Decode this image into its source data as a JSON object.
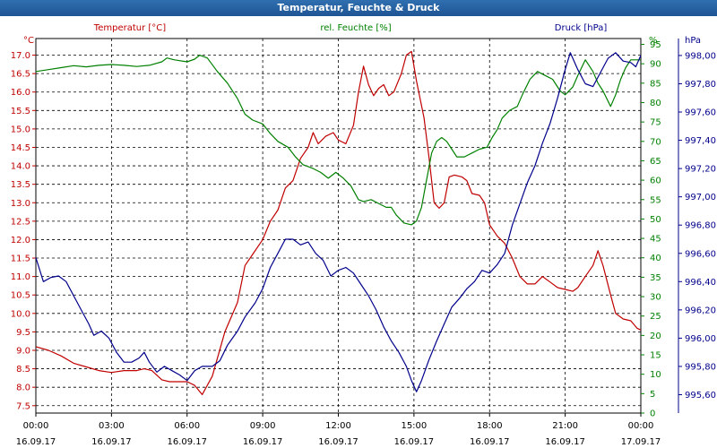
{
  "window": {
    "title": "Temperatur, Feuchte & Druck"
  },
  "chart_data": {
    "type": "line",
    "title": "Temperatur, Feuchte & Druck",
    "x_ticks": [
      {
        "time": "00:00",
        "date": "16.09.17"
      },
      {
        "time": "03:00",
        "date": "16.09.17"
      },
      {
        "time": "06:00",
        "date": "16.09.17"
      },
      {
        "time": "09:00",
        "date": "16.09.17"
      },
      {
        "time": "12:00",
        "date": "16.09.17"
      },
      {
        "time": "15:00",
        "date": "16.09.17"
      },
      {
        "time": "18:00",
        "date": "16.09.17"
      },
      {
        "time": "21:00",
        "date": "16.09.17"
      },
      {
        "time": "00:00",
        "date": "17.09.17"
      }
    ],
    "x_range_hours": [
      0,
      24
    ],
    "grid": true,
    "axes": {
      "temperature": {
        "side": "left",
        "unit": "°C",
        "color": "#c00000",
        "range": [
          7.3,
          17.45
        ],
        "ticks": [
          "7.5",
          "8.0",
          "8.5",
          "9.0",
          "9.5",
          "10.0",
          "10.5",
          "11.0",
          "11.5",
          "12.0",
          "12.5",
          "13.0",
          "13.5",
          "14.0",
          "14.5",
          "15.0",
          "15.5",
          "16.0",
          "16.5",
          "17.0"
        ]
      },
      "humidity": {
        "side": "right-inner",
        "unit": "%",
        "color": "#008000",
        "range": [
          0,
          96.5
        ],
        "ticks": [
          "0",
          "5",
          "10",
          "15",
          "20",
          "25",
          "30",
          "35",
          "40",
          "45",
          "50",
          "55",
          "60",
          "65",
          "70",
          "75",
          "80",
          "85",
          "90",
          "95"
        ]
      },
      "pressure": {
        "side": "right-outer",
        "unit": "hPa",
        "color": "#00008b",
        "range": [
          995.47,
          998.12
        ],
        "ticks": [
          "995,60",
          "995,80",
          "996,00",
          "996,20",
          "996,40",
          "996,60",
          "996,80",
          "997,00",
          "997,20",
          "997,40",
          "997,60",
          "997,80",
          "998,00"
        ]
      }
    },
    "series": [
      {
        "name": "Temperatur [°C]",
        "axis": "temperature",
        "color": "#c00000",
        "points": [
          [
            0,
            9.1
          ],
          [
            0.5,
            9.0
          ],
          [
            1,
            8.85
          ],
          [
            1.5,
            8.65
          ],
          [
            2,
            8.55
          ],
          [
            2.5,
            8.45
          ],
          [
            3,
            8.4
          ],
          [
            3.5,
            8.45
          ],
          [
            4,
            8.45
          ],
          [
            4.3,
            8.5
          ],
          [
            4.6,
            8.45
          ],
          [
            5,
            8.2
          ],
          [
            5.3,
            8.15
          ],
          [
            5.6,
            8.15
          ],
          [
            6,
            8.15
          ],
          [
            6.3,
            8.05
          ],
          [
            6.6,
            7.8
          ],
          [
            7,
            8.3
          ],
          [
            7.5,
            9.5
          ],
          [
            8,
            10.3
          ],
          [
            8.3,
            11.3
          ],
          [
            8.6,
            11.6
          ],
          [
            9,
            12.0
          ],
          [
            9.3,
            12.5
          ],
          [
            9.6,
            12.8
          ],
          [
            9.9,
            13.4
          ],
          [
            10.2,
            13.6
          ],
          [
            10.5,
            14.2
          ],
          [
            10.8,
            14.5
          ],
          [
            11,
            14.9
          ],
          [
            11.2,
            14.6
          ],
          [
            11.5,
            14.8
          ],
          [
            11.8,
            14.9
          ],
          [
            12,
            14.7
          ],
          [
            12.3,
            14.6
          ],
          [
            12.6,
            15.1
          ],
          [
            12.8,
            16.0
          ],
          [
            13,
            16.7
          ],
          [
            13.2,
            16.2
          ],
          [
            13.4,
            15.9
          ],
          [
            13.6,
            16.1
          ],
          [
            13.8,
            16.2
          ],
          [
            14,
            15.9
          ],
          [
            14.2,
            16.0
          ],
          [
            14.5,
            16.5
          ],
          [
            14.7,
            17.0
          ],
          [
            14.9,
            17.1
          ],
          [
            15.1,
            16.3
          ],
          [
            15.4,
            15.3
          ],
          [
            15.6,
            14.2
          ],
          [
            15.8,
            13.0
          ],
          [
            16,
            12.85
          ],
          [
            16.2,
            13.0
          ],
          [
            16.4,
            13.7
          ],
          [
            16.6,
            13.75
          ],
          [
            16.9,
            13.7
          ],
          [
            17.1,
            13.6
          ],
          [
            17.3,
            13.25
          ],
          [
            17.6,
            13.2
          ],
          [
            17.8,
            13.0
          ],
          [
            18,
            12.4
          ],
          [
            18.3,
            12.1
          ],
          [
            18.6,
            11.9
          ],
          [
            18.9,
            11.5
          ],
          [
            19.2,
            11.0
          ],
          [
            19.5,
            10.8
          ],
          [
            19.8,
            10.8
          ],
          [
            20.1,
            11.0
          ],
          [
            20.4,
            10.85
          ],
          [
            20.7,
            10.7
          ],
          [
            21,
            10.65
          ],
          [
            21.3,
            10.6
          ],
          [
            21.5,
            10.7
          ],
          [
            21.8,
            11.0
          ],
          [
            22.1,
            11.3
          ],
          [
            22.3,
            11.7
          ],
          [
            22.5,
            11.3
          ],
          [
            22.8,
            10.5
          ],
          [
            23,
            10.0
          ],
          [
            23.3,
            9.85
          ],
          [
            23.6,
            9.8
          ],
          [
            23.85,
            9.6
          ],
          [
            24,
            9.55
          ]
        ]
      },
      {
        "name": "rel. Feuchte [%]",
        "axis": "humidity",
        "color": "#008000",
        "points": [
          [
            0,
            88
          ],
          [
            0.5,
            88.5
          ],
          [
            1,
            89
          ],
          [
            1.5,
            89.5
          ],
          [
            2,
            89.2
          ],
          [
            2.5,
            89.6
          ],
          [
            3,
            89.8
          ],
          [
            3.5,
            89.6
          ],
          [
            4,
            89.3
          ],
          [
            4.5,
            89.6
          ],
          [
            5,
            90.5
          ],
          [
            5.2,
            91.5
          ],
          [
            5.5,
            91
          ],
          [
            6,
            90.5
          ],
          [
            6.3,
            91.2
          ],
          [
            6.5,
            92.2
          ],
          [
            6.8,
            91.5
          ],
          [
            7.2,
            88
          ],
          [
            7.6,
            85
          ],
          [
            8,
            81
          ],
          [
            8.3,
            77
          ],
          [
            8.6,
            75.5
          ],
          [
            9,
            74.5
          ],
          [
            9.3,
            72
          ],
          [
            9.6,
            70
          ],
          [
            10,
            68.5
          ],
          [
            10.3,
            66
          ],
          [
            10.6,
            64
          ],
          [
            11,
            63
          ],
          [
            11.3,
            62
          ],
          [
            11.6,
            60.5
          ],
          [
            11.9,
            62
          ],
          [
            12.2,
            60.5
          ],
          [
            12.5,
            58.5
          ],
          [
            12.8,
            55
          ],
          [
            13,
            54.5
          ],
          [
            13.3,
            55
          ],
          [
            13.6,
            54
          ],
          [
            13.9,
            53
          ],
          [
            14.1,
            53
          ],
          [
            14.3,
            51
          ],
          [
            14.6,
            49
          ],
          [
            14.9,
            48.5
          ],
          [
            15.1,
            49.5
          ],
          [
            15.3,
            53
          ],
          [
            15.5,
            60
          ],
          [
            15.7,
            67
          ],
          [
            15.9,
            70
          ],
          [
            16.1,
            71
          ],
          [
            16.3,
            70
          ],
          [
            16.5,
            68
          ],
          [
            16.7,
            66
          ],
          [
            17,
            66
          ],
          [
            17.3,
            67
          ],
          [
            17.6,
            68
          ],
          [
            17.9,
            68.5
          ],
          [
            18.1,
            71
          ],
          [
            18.3,
            73
          ],
          [
            18.5,
            76
          ],
          [
            18.8,
            78
          ],
          [
            19.1,
            79
          ],
          [
            19.3,
            82
          ],
          [
            19.6,
            86
          ],
          [
            19.9,
            88
          ],
          [
            20.2,
            87
          ],
          [
            20.5,
            86
          ],
          [
            20.8,
            83
          ],
          [
            21,
            82
          ],
          [
            21.3,
            84
          ],
          [
            21.5,
            87
          ],
          [
            21.8,
            91
          ],
          [
            22.1,
            88
          ],
          [
            22.3,
            85
          ],
          [
            22.5,
            83
          ],
          [
            22.8,
            79
          ],
          [
            23,
            82
          ],
          [
            23.2,
            86
          ],
          [
            23.4,
            89
          ],
          [
            23.6,
            91
          ],
          [
            24,
            91
          ]
        ]
      },
      {
        "name": "Druck [hPa]",
        "axis": "pressure",
        "color": "#00008b",
        "points": [
          [
            0,
            996.57
          ],
          [
            0.3,
            996.4
          ],
          [
            0.6,
            996.43
          ],
          [
            0.9,
            996.44
          ],
          [
            1.2,
            996.4
          ],
          [
            1.5,
            996.3
          ],
          [
            1.8,
            996.2
          ],
          [
            2.1,
            996.1
          ],
          [
            2.3,
            996.02
          ],
          [
            2.6,
            996.05
          ],
          [
            2.9,
            996.0
          ],
          [
            3.2,
            995.9
          ],
          [
            3.5,
            995.83
          ],
          [
            3.8,
            995.83
          ],
          [
            4.1,
            995.86
          ],
          [
            4.3,
            995.9
          ],
          [
            4.5,
            995.83
          ],
          [
            4.8,
            995.76
          ],
          [
            5.1,
            995.8
          ],
          [
            5.4,
            995.77
          ],
          [
            5.7,
            995.74
          ],
          [
            6,
            995.7
          ],
          [
            6.3,
            995.77
          ],
          [
            6.6,
            995.8
          ],
          [
            7,
            995.8
          ],
          [
            7.3,
            995.84
          ],
          [
            7.6,
            995.95
          ],
          [
            8,
            996.05
          ],
          [
            8.3,
            996.15
          ],
          [
            8.7,
            996.25
          ],
          [
            9,
            996.35
          ],
          [
            9.3,
            996.5
          ],
          [
            9.6,
            996.6
          ],
          [
            9.9,
            996.7
          ],
          [
            10.2,
            996.7
          ],
          [
            10.5,
            996.66
          ],
          [
            10.8,
            996.68
          ],
          [
            11.1,
            996.6
          ],
          [
            11.4,
            996.55
          ],
          [
            11.7,
            996.44
          ],
          [
            12,
            996.48
          ],
          [
            12.3,
            996.5
          ],
          [
            12.6,
            996.46
          ],
          [
            12.9,
            996.38
          ],
          [
            13.2,
            996.3
          ],
          [
            13.5,
            996.2
          ],
          [
            13.8,
            996.08
          ],
          [
            14.1,
            995.98
          ],
          [
            14.4,
            995.9
          ],
          [
            14.7,
            995.8
          ],
          [
            14.9,
            995.7
          ],
          [
            15.1,
            995.62
          ],
          [
            15.3,
            995.7
          ],
          [
            15.6,
            995.85
          ],
          [
            15.9,
            995.98
          ],
          [
            16.2,
            996.1
          ],
          [
            16.5,
            996.22
          ],
          [
            16.8,
            996.28
          ],
          [
            17.1,
            996.35
          ],
          [
            17.4,
            996.4
          ],
          [
            17.7,
            996.48
          ],
          [
            18,
            996.46
          ],
          [
            18.3,
            996.52
          ],
          [
            18.6,
            996.6
          ],
          [
            18.9,
            996.8
          ],
          [
            19.2,
            996.95
          ],
          [
            19.5,
            997.1
          ],
          [
            19.8,
            997.22
          ],
          [
            20.1,
            997.38
          ],
          [
            20.4,
            997.52
          ],
          [
            20.7,
            997.7
          ],
          [
            21,
            997.9
          ],
          [
            21.2,
            998.02
          ],
          [
            21.5,
            997.9
          ],
          [
            21.8,
            997.8
          ],
          [
            22.1,
            997.78
          ],
          [
            22.4,
            997.88
          ],
          [
            22.7,
            997.98
          ],
          [
            23,
            998.02
          ],
          [
            23.3,
            997.96
          ],
          [
            23.6,
            997.95
          ],
          [
            23.8,
            997.92
          ],
          [
            24,
            998.0
          ]
        ]
      }
    ]
  }
}
